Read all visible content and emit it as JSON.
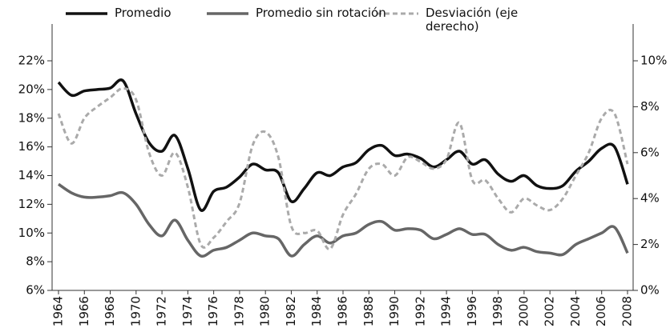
{
  "chart_data": {
    "type": "line",
    "x": [
      1964,
      1965,
      1966,
      1967,
      1968,
      1969,
      1970,
      1971,
      1972,
      1973,
      1974,
      1975,
      1976,
      1977,
      1978,
      1979,
      1980,
      1981,
      1982,
      1983,
      1984,
      1985,
      1986,
      1987,
      1988,
      1989,
      1990,
      1991,
      1992,
      1993,
      1994,
      1995,
      1996,
      1997,
      1998,
      1999,
      2000,
      2001,
      2002,
      2003,
      2004,
      2005,
      2006,
      2007,
      2008
    ],
    "series": [
      {
        "name": "Promedio",
        "color": "#111111",
        "dash": false,
        "values": [
          20.5,
          19.6,
          19.9,
          20.0,
          20.1,
          20.6,
          18.3,
          16.3,
          15.7,
          16.8,
          14.5,
          11.6,
          12.9,
          13.2,
          13.9,
          14.8,
          14.4,
          14.2,
          12.2,
          13.1,
          14.2,
          14.0,
          14.6,
          14.9,
          15.8,
          16.1,
          15.4,
          15.5,
          15.2,
          14.6,
          15.1,
          15.7,
          14.8,
          15.1,
          14.1,
          13.6,
          14.0,
          13.3,
          13.1,
          13.3,
          14.3,
          15.0,
          15.9,
          16.0,
          13.4
        ]
      },
      {
        "name": "Promedio sin rotación",
        "color": "#666666",
        "dash": false,
        "values": [
          13.4,
          12.8,
          12.5,
          12.5,
          12.6,
          12.8,
          12.0,
          10.6,
          9.8,
          10.9,
          9.5,
          8.4,
          8.8,
          9.0,
          9.5,
          10.0,
          9.8,
          9.6,
          8.4,
          9.2,
          9.8,
          9.3,
          9.8,
          10.0,
          10.6,
          10.8,
          10.2,
          10.3,
          10.2,
          9.6,
          9.9,
          10.3,
          9.9,
          9.9,
          9.2,
          8.8,
          9.0,
          8.7,
          8.6,
          8.5,
          9.2,
          9.6,
          10.0,
          10.4,
          8.6
        ]
      },
      {
        "name": "Desviación (eje derecho)",
        "color": "#aaaaaa",
        "dash": true,
        "axis": "y2",
        "values": [
          7.7,
          6.4,
          7.5,
          8.0,
          8.4,
          8.8,
          8.3,
          6.0,
          5.0,
          6.0,
          4.5,
          2.0,
          2.3,
          3.0,
          3.8,
          6.3,
          6.9,
          5.8,
          2.8,
          2.5,
          2.6,
          1.8,
          3.3,
          4.2,
          5.3,
          5.5,
          5.0,
          5.8,
          5.6,
          5.3,
          5.7,
          7.3,
          4.8,
          4.8,
          4.0,
          3.4,
          4.0,
          3.7,
          3.5,
          4.0,
          5.0,
          6.0,
          7.5,
          7.7,
          5.5
        ]
      }
    ],
    "xlim": [
      1964,
      2008
    ],
    "xticks": [
      1964,
      1966,
      1968,
      1970,
      1972,
      1974,
      1976,
      1978,
      1980,
      1982,
      1984,
      1986,
      1988,
      1990,
      1992,
      1994,
      1996,
      1998,
      2000,
      2002,
      2004,
      2006,
      2008
    ],
    "ylim": [
      6,
      22
    ],
    "yticks": [
      {
        "value": 6,
        "label": "6%"
      },
      {
        "value": 8,
        "label": "8%"
      },
      {
        "value": 10,
        "label": "10%"
      },
      {
        "value": 12,
        "label": "12%"
      },
      {
        "value": 14,
        "label": "14%"
      },
      {
        "value": 16,
        "label": "16%"
      },
      {
        "value": 18,
        "label": "18%"
      },
      {
        "value": 20,
        "label": "20%"
      },
      {
        "value": 22,
        "label": "22%"
      }
    ],
    "y2lim": [
      0,
      10
    ],
    "y2ticks": [
      {
        "value": 0,
        "label": "0%"
      },
      {
        "value": 2,
        "label": "2%"
      },
      {
        "value": 4,
        "label": "4%"
      },
      {
        "value": 6,
        "label": "6%"
      },
      {
        "value": 8,
        "label": "8%"
      },
      {
        "value": 10,
        "label": "10%"
      }
    ],
    "legend": "top"
  }
}
